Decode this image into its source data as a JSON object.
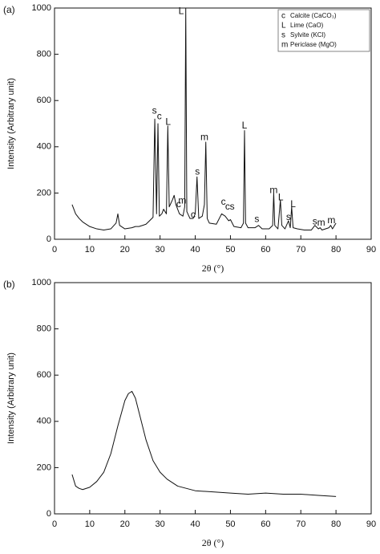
{
  "chart_data": [
    {
      "type": "line",
      "panel_label": "(a)",
      "xlabel": "2θ (°)",
      "ylabel": "Intensity (Arbitrary unit)",
      "x": [
        5,
        5.5,
        6,
        7,
        8,
        9,
        10,
        12,
        14,
        16,
        17.5,
        18,
        18.5,
        20,
        22,
        23,
        24,
        25,
        26,
        27,
        28,
        28.5,
        29,
        29.4,
        29.8,
        30.5,
        31,
        31.8,
        32.2,
        32.6,
        33.5,
        34,
        34.5,
        35.5,
        36.5,
        37,
        37.3,
        37.6,
        38.5,
        39.4,
        40,
        40.5,
        41,
        42,
        42.6,
        43,
        43.4,
        44,
        46,
        47.5,
        48.5,
        49.5,
        50,
        51,
        53,
        53.7,
        54,
        54.3,
        55,
        57,
        58,
        59,
        61,
        62,
        62.3,
        62.6,
        63.5,
        64.2,
        64.6,
        65.5,
        66.5,
        67,
        67.4,
        67.8,
        69,
        71,
        73,
        74,
        75,
        75.5,
        76,
        78,
        78.5,
        79,
        80
      ],
      "series": [
        {
          "color": "#111111",
          "values": [
            150,
            130,
            110,
            90,
            75,
            65,
            55,
            45,
            40,
            45,
            70,
            110,
            60,
            45,
            50,
            55,
            55,
            60,
            65,
            80,
            95,
            520,
            110,
            500,
            100,
            110,
            130,
            110,
            490,
            140,
            170,
            190,
            150,
            110,
            100,
            140,
            1000,
            120,
            90,
            90,
            110,
            270,
            90,
            100,
            150,
            420,
            90,
            70,
            65,
            110,
            100,
            80,
            85,
            55,
            50,
            70,
            470,
            70,
            50,
            50,
            60,
            45,
            45,
            60,
            200,
            60,
            45,
            170,
            60,
            45,
            80,
            50,
            140,
            50,
            45,
            40,
            40,
            60,
            45,
            50,
            40,
            50,
            60,
            45,
            70
          ]
        }
      ],
      "xlim": [
        0,
        90
      ],
      "ylim": [
        0,
        1000
      ],
      "xticks": [
        0,
        10,
        20,
        30,
        40,
        50,
        60,
        70,
        80,
        90
      ],
      "yticks": [
        0,
        200,
        400,
        600,
        800,
        1000
      ],
      "annotations": [
        {
          "text": "s",
          "x": 28.4,
          "y": 555
        },
        {
          "text": "c",
          "x": 29.8,
          "y": 530
        },
        {
          "text": "L",
          "x": 32.3,
          "y": 505
        },
        {
          "text": "L",
          "x": 36,
          "y": 985
        },
        {
          "text": "c",
          "x": 35.3,
          "y": 150
        },
        {
          "text": "m",
          "x": 36.3,
          "y": 165
        },
        {
          "text": "c",
          "x": 39.4,
          "y": 105
        },
        {
          "text": "s",
          "x": 40.6,
          "y": 290
        },
        {
          "text": "m",
          "x": 42.6,
          "y": 440
        },
        {
          "text": "c",
          "x": 48,
          "y": 160
        },
        {
          "text": "c",
          "x": 49.2,
          "y": 140
        },
        {
          "text": "s",
          "x": 50.5,
          "y": 140
        },
        {
          "text": "L",
          "x": 54,
          "y": 490
        },
        {
          "text": "s",
          "x": 57.5,
          "y": 85
        },
        {
          "text": "m",
          "x": 62.3,
          "y": 210
        },
        {
          "text": "L",
          "x": 64.3,
          "y": 180
        },
        {
          "text": "s",
          "x": 66.5,
          "y": 95
        },
        {
          "text": "L",
          "x": 67.8,
          "y": 150
        },
        {
          "text": "s",
          "x": 74,
          "y": 75
        },
        {
          "text": "m",
          "x": 75.8,
          "y": 70
        },
        {
          "text": "m",
          "x": 78.7,
          "y": 80
        }
      ],
      "legend": [
        {
          "symbol": "c",
          "label": "Calcite (CaCO₃)"
        },
        {
          "symbol": "L",
          "label": "Lime (CaO)"
        },
        {
          "symbol": "s",
          "label": "Sylvite (KCl)"
        },
        {
          "symbol": "m",
          "label": "Periclase (MgO)"
        }
      ]
    },
    {
      "type": "line",
      "panel_label": "(b)",
      "xlabel": "2θ (°)",
      "ylabel": "Intensity (Arbitrary unit)",
      "x": [
        5,
        6,
        7,
        8,
        10,
        12,
        14,
        16,
        18,
        20,
        21,
        22,
        23,
        24,
        26,
        28,
        30,
        32,
        35,
        40,
        45,
        50,
        55,
        60,
        65,
        70,
        75,
        80
      ],
      "series": [
        {
          "color": "#111111",
          "values": [
            170,
            120,
            110,
            105,
            115,
            140,
            180,
            260,
            380,
            490,
            520,
            530,
            500,
            440,
            320,
            230,
            180,
            150,
            120,
            100,
            95,
            90,
            85,
            90,
            85,
            85,
            80,
            75
          ]
        }
      ],
      "xlim": [
        0,
        90
      ],
      "ylim": [
        0,
        1000
      ],
      "xticks": [
        0,
        10,
        20,
        30,
        40,
        50,
        60,
        70,
        80,
        90
      ],
      "yticks": [
        0,
        200,
        400,
        600,
        800,
        1000
      ]
    }
  ]
}
